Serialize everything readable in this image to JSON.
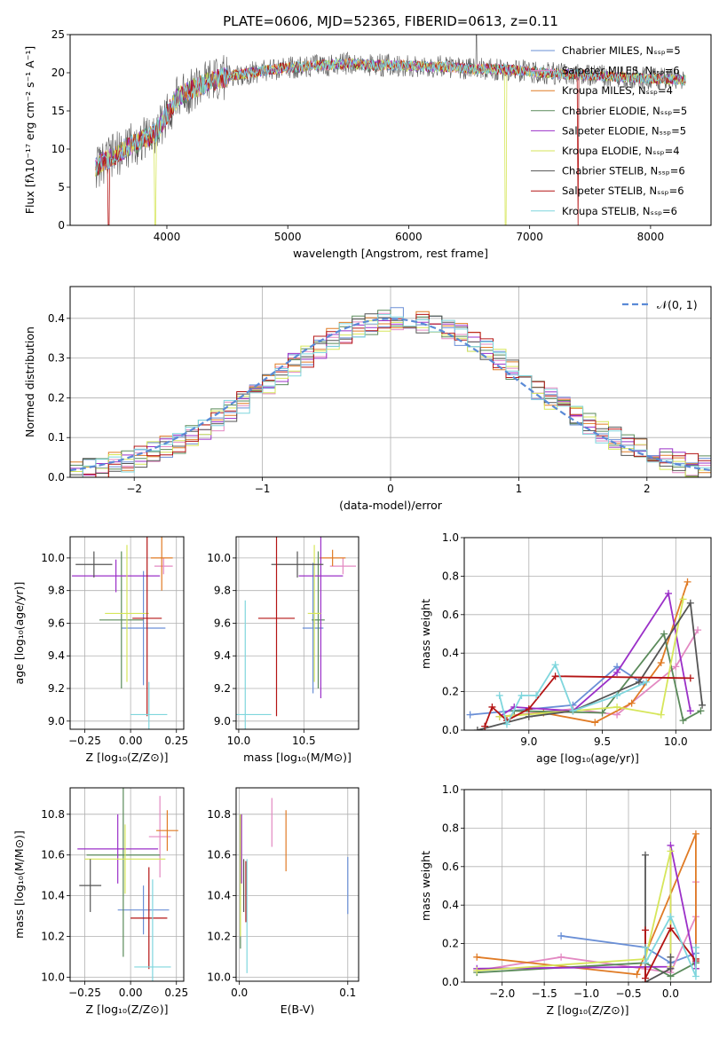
{
  "title": "PLATE=0606, MJD=52365, FIBERID=0613, z=0.11",
  "colors": {
    "Chabrier MILES": "#6a8fd6",
    "Salpeter MILES": "#e389c2",
    "Kroupa MILES": "#e07b25",
    "Chabrier ELODIE": "#5a8a5a",
    "Salpeter ELODIE": "#9b30c8",
    "Kroupa ELODIE": "#d6e65a",
    "Chabrier STELIB": "#555555",
    "Salpeter STELIB": "#b41414",
    "Kroupa STELIB": "#7fd6dd"
  },
  "chart_data": [
    {
      "id": "spectrum",
      "type": "line",
      "title": "PLATE=0606, MJD=52365, FIBERID=0613, z=0.11",
      "xlabel": "wavelength [Angstrom, rest frame]",
      "ylabel": "Flux [fλ10⁻¹⁷ erg cm⁻² s⁻¹ A⁻¹]",
      "xlim": [
        3200,
        8500
      ],
      "ylim": [
        0,
        25
      ],
      "xticks": [
        "4000",
        "5000",
        "6000",
        "7000",
        "8000"
      ],
      "yticks": [
        "0",
        "5",
        "10",
        "15",
        "20",
        "25"
      ],
      "legend_position": "upper-right",
      "legend": [
        "Chabrier MILES, N_SSP=5",
        "Salpeter MILES, N_SSP=6",
        "Kroupa MILES, N_SSP=4",
        "Chabrier ELODIE, N_SSP=5",
        "Salpeter ELODIE, N_SSP=5",
        "Kroupa ELODIE, N_SSP=4",
        "Chabrier STELIB, N_SSP=6",
        "Salpeter STELIB, N_SSP=6",
        "Kroupa STELIB, N_SSP=6"
      ],
      "continuum_knots": {
        "wavelength": [
          3400,
          3500,
          3700,
          3900,
          4000,
          4100,
          4300,
          4500,
          4700,
          4900,
          5100,
          5300,
          5500,
          5700,
          5900,
          6100,
          6300,
          6500,
          6700,
          6900,
          7100,
          7300,
          7500,
          7700,
          7900,
          8100,
          8300
        ],
        "flux": [
          7.5,
          8.5,
          10.5,
          12.0,
          14.5,
          17.0,
          18.5,
          19.5,
          20.0,
          20.5,
          20.8,
          21.0,
          21.2,
          21.0,
          21.0,
          20.8,
          20.8,
          20.5,
          20.5,
          20.3,
          20.0,
          19.8,
          19.7,
          19.5,
          19.3,
          19.2,
          19.0
        ]
      },
      "features": [
        {
          "model": "Salpeter STELIB",
          "wavelength": 3520,
          "flux": 0
        },
        {
          "model": "Kroupa ELODIE",
          "wavelength": 3905,
          "flux": 0
        },
        {
          "model": "Kroupa ELODIE",
          "wavelength": 6800,
          "flux": 0
        },
        {
          "model": "Salpeter STELIB",
          "wavelength": 7400,
          "flux": 0
        },
        {
          "model": "Chabrier STELIB",
          "wavelength": 6560,
          "flux": 25
        }
      ]
    },
    {
      "id": "residuals",
      "type": "line",
      "xlabel": "(data-model)/error",
      "ylabel": "Normed distribution",
      "xlim": [
        -2.5,
        2.5
      ],
      "ylim": [
        0,
        0.48
      ],
      "xticks": [
        "−2",
        "−1",
        "0",
        "1",
        "2"
      ],
      "yticks": [
        "0.0",
        "0.1",
        "0.2",
        "0.3",
        "0.4"
      ],
      "legend_position": "upper-right",
      "legend": [
        "𝒩(0, 1)"
      ],
      "bin_width": 0.1,
      "gaussian": {
        "mean": 0,
        "sigma": 1
      }
    },
    {
      "id": "age-vs-Z",
      "type": "scatter",
      "xlabel": "Z [log₁₀(Z/Z⊙)]",
      "ylabel": "age  [log₁₀(age/yr)]",
      "xlim": [
        -0.33,
        0.29
      ],
      "ylim": [
        8.95,
        10.13
      ],
      "xticks": [
        "−0.25",
        "0.00",
        "0.25"
      ],
      "yticks": [
        "9.0",
        "9.2",
        "9.4",
        "9.6",
        "9.8",
        "10.0"
      ],
      "points": [
        {
          "model": "Chabrier MILES",
          "x": 0.07,
          "y": 9.57,
          "xerr": 0.12,
          "yerr": 0.35
        },
        {
          "model": "Salpeter MILES",
          "x": 0.18,
          "y": 9.95,
          "xerr": 0.05,
          "yerr": 0.05
        },
        {
          "model": "Kroupa MILES",
          "x": 0.17,
          "y": 10.0,
          "xerr": 0.06,
          "yerr": 0.2
        },
        {
          "model": "Chabrier ELODIE",
          "x": -0.05,
          "y": 9.62,
          "xerr": 0.12,
          "yerr": 0.42
        },
        {
          "model": "Salpeter ELODIE",
          "x": -0.08,
          "y": 9.89,
          "xerr": 0.24,
          "yerr": 0.1
        },
        {
          "model": "Kroupa ELODIE",
          "x": -0.02,
          "y": 9.66,
          "xerr": 0.12,
          "yerr": 0.42
        },
        {
          "model": "Chabrier STELIB",
          "x": -0.2,
          "y": 9.96,
          "xerr": 0.1,
          "yerr": 0.08
        },
        {
          "model": "Salpeter STELIB",
          "x": 0.09,
          "y": 9.63,
          "xerr": 0.08,
          "yerr": 0.6
        },
        {
          "model": "Kroupa STELIB",
          "x": 0.1,
          "y": 9.04,
          "xerr": 0.1,
          "yerr": 0.2
        }
      ]
    },
    {
      "id": "age-vs-mass",
      "type": "scatter",
      "xlabel": "mass [log₁₀(M/M⊙)]",
      "ylabel": "",
      "xlim": [
        9.98,
        10.92
      ],
      "ylim": [
        8.95,
        10.13
      ],
      "xticks": [
        "10.0",
        "10.5"
      ],
      "yticks": [
        "9.0",
        "9.2",
        "9.4",
        "9.6",
        "9.8",
        "10.0"
      ],
      "points": [
        {
          "model": "Chabrier MILES",
          "x": 10.57,
          "y": 9.57,
          "xerr": 0.08,
          "yerr": 0.4
        },
        {
          "model": "Salpeter MILES",
          "x": 10.8,
          "y": 9.95,
          "xerr": 0.1,
          "yerr": 0.05
        },
        {
          "model": "Kroupa MILES",
          "x": 10.72,
          "y": 10.0,
          "xerr": 0.1,
          "yerr": 0.05
        },
        {
          "model": "Chabrier ELODIE",
          "x": 10.61,
          "y": 9.62,
          "xerr": 0.05,
          "yerr": 0.42
        },
        {
          "model": "Salpeter ELODIE",
          "x": 10.63,
          "y": 9.89,
          "xerr": 0.17,
          "yerr": 0.75
        },
        {
          "model": "Kroupa ELODIE",
          "x": 10.58,
          "y": 9.66,
          "xerr": 0.05,
          "yerr": 0.42
        },
        {
          "model": "Chabrier STELIB",
          "x": 10.45,
          "y": 9.96,
          "xerr": 0.2,
          "yerr": 0.08
        },
        {
          "model": "Salpeter STELIB",
          "x": 10.29,
          "y": 9.63,
          "xerr": 0.14,
          "yerr": 0.6
        },
        {
          "model": "Kroupa STELIB",
          "x": 10.05,
          "y": 9.04,
          "xerr": 0.2,
          "yerr": 0.7
        }
      ]
    },
    {
      "id": "weight-vs-age",
      "type": "line",
      "xlabel": "age  [log₁₀(age/yr)]",
      "ylabel": "mass weight",
      "xlim": [
        8.56,
        10.24
      ],
      "ylim": [
        0,
        1
      ],
      "xticks": [
        "9.0",
        "9.5",
        "10.0"
      ],
      "yticks": [
        "0.0",
        "0.2",
        "0.4",
        "0.6",
        "0.8",
        "1.0"
      ],
      "series": [
        {
          "model": "Chabrier MILES",
          "x": [
            8.6,
            9.3,
            9.6,
            9.78
          ],
          "y": [
            0.08,
            0.13,
            0.33,
            0.24
          ]
        },
        {
          "model": "Salpeter MILES",
          "x": [
            8.8,
            9.3,
            9.6,
            10.0,
            10.15
          ],
          "y": [
            0.07,
            0.11,
            0.08,
            0.33,
            0.52
          ]
        },
        {
          "model": "Kroupa MILES",
          "x": [
            8.8,
            9.1,
            9.45,
            9.7,
            9.9,
            10.08
          ],
          "y": [
            0.07,
            0.09,
            0.04,
            0.14,
            0.35,
            0.77
          ]
        },
        {
          "model": "Chabrier ELODIE",
          "x": [
            8.9,
            9.5,
            9.92,
            10.05,
            10.17
          ],
          "y": [
            0.1,
            0.09,
            0.5,
            0.05,
            0.1
          ]
        },
        {
          "model": "Salpeter ELODIE",
          "x": [
            8.8,
            8.9,
            9.3,
            9.6,
            9.95,
            10.1
          ],
          "y": [
            0.07,
            0.12,
            0.1,
            0.3,
            0.71,
            0.1
          ]
        },
        {
          "model": "Kroupa ELODIE",
          "x": [
            8.8,
            9.3,
            9.6,
            9.9,
            10.05
          ],
          "y": [
            0.07,
            0.1,
            0.12,
            0.08,
            0.68
          ]
        },
        {
          "model": "Chabrier STELIB",
          "x": [
            8.65,
            9.0,
            9.3,
            9.75,
            10.1,
            10.18
          ],
          "y": [
            0.0,
            0.07,
            0.1,
            0.25,
            0.66,
            0.13
          ]
        },
        {
          "model": "Salpeter STELIB",
          "x": [
            8.7,
            8.75,
            8.85,
            9.0,
            9.18,
            10.1
          ],
          "y": [
            0.02,
            0.12,
            0.05,
            0.11,
            0.28,
            0.27
          ]
        },
        {
          "model": "Kroupa STELIB",
          "x": [
            8.8,
            8.85,
            8.95,
            9.05,
            9.18,
            9.3,
            9.6,
            9.8
          ],
          "y": [
            0.18,
            0.03,
            0.18,
            0.18,
            0.34,
            0.1,
            0.18,
            0.25
          ]
        }
      ]
    },
    {
      "id": "mass-vs-Z",
      "type": "scatter",
      "xlabel": "Z [log₁₀(Z/Z⊙)]",
      "ylabel": "mass [log₁₀(M/M⊙)]",
      "xlim": [
        -0.33,
        0.29
      ],
      "ylim": [
        9.98,
        10.93
      ],
      "xticks": [
        "−0.25",
        "0.00",
        "0.25"
      ],
      "yticks": [
        "10.0",
        "10.2",
        "10.4",
        "10.6",
        "10.8"
      ],
      "points": [
        {
          "model": "Chabrier MILES",
          "x": 0.07,
          "y": 10.33,
          "xerr": 0.14,
          "yerr": 0.12
        },
        {
          "model": "Salpeter MILES",
          "x": 0.16,
          "y": 10.69,
          "xerr": 0.06,
          "yerr": 0.2
        },
        {
          "model": "Kroupa MILES",
          "x": 0.2,
          "y": 10.72,
          "xerr": 0.06,
          "yerr": 0.1
        },
        {
          "model": "Chabrier ELODIE",
          "x": -0.04,
          "y": 10.6,
          "xerr": 0.2,
          "yerr": 0.5
        },
        {
          "model": "Salpeter ELODIE",
          "x": -0.07,
          "y": 10.63,
          "xerr": 0.22,
          "yerr": 0.17
        },
        {
          "model": "Kroupa ELODIE",
          "x": -0.03,
          "y": 10.58,
          "xerr": 0.22,
          "yerr": 0.17
        },
        {
          "model": "Chabrier STELIB",
          "x": -0.22,
          "y": 10.45,
          "xerr": 0.06,
          "yerr": 0.13
        },
        {
          "model": "Salpeter STELIB",
          "x": 0.1,
          "y": 10.29,
          "xerr": 0.1,
          "yerr": 0.25
        },
        {
          "model": "Kroupa STELIB",
          "x": 0.12,
          "y": 10.05,
          "xerr": 0.1,
          "yerr": 0.43
        }
      ]
    },
    {
      "id": "mass-vs-EBV",
      "type": "scatter",
      "xlabel": "E(B-V)",
      "ylabel": "",
      "xlim": [
        -0.003,
        0.11
      ],
      "ylim": [
        9.98,
        10.93
      ],
      "xticks": [
        "0.0",
        "0.1"
      ],
      "yticks": [
        "10.0",
        "10.2",
        "10.4",
        "10.6",
        "10.8"
      ],
      "points": [
        {
          "model": "Chabrier MILES",
          "x": 0.1,
          "y": 10.45,
          "xerr": 0,
          "yerr": 0.14
        },
        {
          "model": "Salpeter MILES",
          "x": 0.03,
          "y": 10.76,
          "xerr": 0,
          "yerr": 0.12
        },
        {
          "model": "Kroupa MILES",
          "x": 0.043,
          "y": 10.67,
          "xerr": 0,
          "yerr": 0.15
        },
        {
          "model": "Chabrier ELODIE",
          "x": 0.001,
          "y": 10.47,
          "xerr": 0,
          "yerr": 0.33
        },
        {
          "model": "Salpeter ELODIE",
          "x": 0.002,
          "y": 10.63,
          "xerr": 0,
          "yerr": 0.17
        },
        {
          "model": "Kroupa ELODIE",
          "x": 0.001,
          "y": 10.5,
          "xerr": 0,
          "yerr": 0.3
        },
        {
          "model": "Chabrier STELIB",
          "x": 0.004,
          "y": 10.45,
          "xerr": 0,
          "yerr": 0.13
        },
        {
          "model": "Salpeter STELIB",
          "x": 0.006,
          "y": 10.42,
          "xerr": 0,
          "yerr": 0.15
        },
        {
          "model": "Kroupa STELIB",
          "x": 0.007,
          "y": 10.3,
          "xerr": 0,
          "yerr": 0.28
        }
      ]
    },
    {
      "id": "weight-vs-Z",
      "type": "line",
      "xlabel": "Z [log₁₀(Z/Z⊙)]",
      "ylabel": "mass weight",
      "xlim": [
        -2.45,
        0.48
      ],
      "ylim": [
        0,
        1
      ],
      "xticks": [
        "−2.0",
        "−1.5",
        "−1.0",
        "−0.5",
        "0.0"
      ],
      "yticks": [
        "0.0",
        "0.2",
        "0.4",
        "0.6",
        "0.8",
        "1.0"
      ],
      "series": [
        {
          "model": "Chabrier MILES",
          "x": [
            -1.3,
            -0.3,
            0.0,
            0.3
          ],
          "y": [
            0.24,
            0.18,
            0.1,
            0.15
          ]
        },
        {
          "model": "Salpeter MILES",
          "x": [
            -2.3,
            -1.3,
            0.0,
            0.3,
            0.3,
            0.3
          ],
          "y": [
            0.06,
            0.13,
            0.05,
            0.34,
            0.52,
            0.1
          ]
        },
        {
          "model": "Kroupa MILES",
          "x": [
            -2.3,
            -0.4,
            0.3,
            0.3
          ],
          "y": [
            0.13,
            0.04,
            0.77,
            0.07
          ]
        },
        {
          "model": "Chabrier ELODIE",
          "x": [
            -2.3,
            -0.3,
            0.0,
            0.3
          ],
          "y": [
            0.05,
            0.1,
            0.03,
            0.1
          ]
        },
        {
          "model": "Salpeter ELODIE",
          "x": [
            -2.3,
            0.0,
            0.0,
            0.3
          ],
          "y": [
            0.07,
            0.08,
            0.71,
            0.07
          ]
        },
        {
          "model": "Kroupa ELODIE",
          "x": [
            -2.3,
            -0.3,
            0.0,
            0.0
          ],
          "y": [
            0.06,
            0.12,
            0.68,
            0.08
          ]
        },
        {
          "model": "Chabrier STELIB",
          "x": [
            -0.3,
            -0.3,
            0.0,
            0.0
          ],
          "y": [
            0.66,
            0.0,
            0.07,
            0.13
          ]
        },
        {
          "model": "Salpeter STELIB",
          "x": [
            -0.3,
            -0.3,
            0.0,
            0.3,
            0.3
          ],
          "y": [
            0.27,
            0.02,
            0.28,
            0.11,
            0.12
          ]
        },
        {
          "model": "Kroupa STELIB",
          "x": [
            -0.3,
            -0.3,
            0.0,
            0.3,
            0.3
          ],
          "y": [
            0.18,
            0.1,
            0.34,
            0.03,
            0.18
          ]
        }
      ]
    }
  ]
}
